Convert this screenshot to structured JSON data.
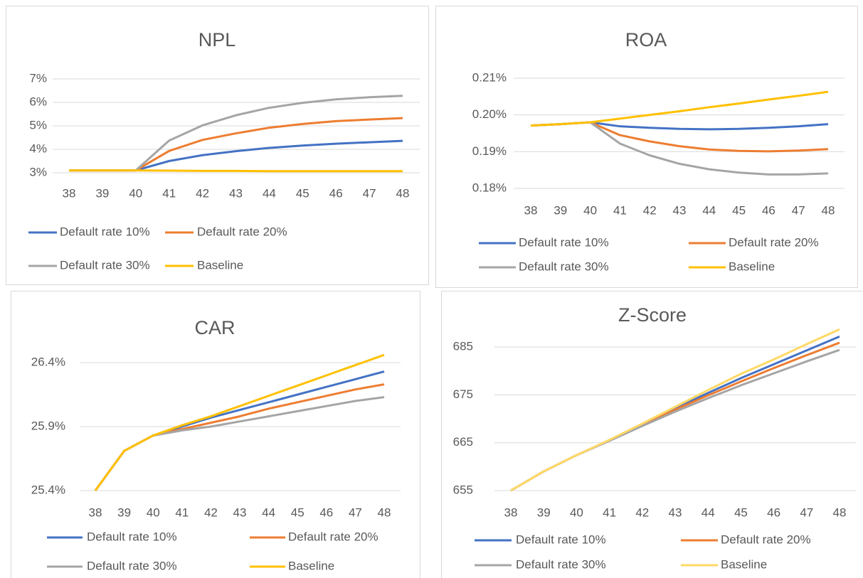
{
  "chart_data": [
    {
      "type": "line",
      "title": "NPL",
      "categories": [
        38,
        39,
        40,
        41,
        42,
        43,
        44,
        45,
        46,
        47,
        48
      ],
      "ylim": [
        3,
        7
      ],
      "yticks": [
        {
          "value": 3,
          "label": "3%"
        },
        {
          "value": 4,
          "label": "4%"
        },
        {
          "value": 5,
          "label": "5%"
        },
        {
          "value": 6,
          "label": "6%"
        },
        {
          "value": 7,
          "label": "7%"
        }
      ],
      "grid": true,
      "series": [
        {
          "name": "Default rate 10%",
          "color": "#4472c4",
          "values": [
            3.1,
            3.1,
            3.1,
            3.5,
            3.75,
            3.92,
            4.06,
            4.16,
            4.24,
            4.3,
            4.36
          ]
        },
        {
          "name": "Default rate 20%",
          "color": "#ed7d31",
          "values": [
            3.1,
            3.1,
            3.1,
            3.93,
            4.4,
            4.68,
            4.92,
            5.08,
            5.2,
            5.27,
            5.33
          ]
        },
        {
          "name": "Default rate 30%",
          "color": "#a5a5a5",
          "values": [
            3.1,
            3.1,
            3.1,
            4.37,
            5.02,
            5.45,
            5.77,
            5.98,
            6.13,
            6.22,
            6.28
          ]
        },
        {
          "name": "Baseline",
          "color": "#ffc000",
          "values": [
            3.1,
            3.1,
            3.1,
            3.09,
            3.08,
            3.08,
            3.07,
            3.07,
            3.07,
            3.07,
            3.07
          ]
        }
      ]
    },
    {
      "type": "line",
      "title": "ROA",
      "categories": [
        38,
        39,
        40,
        41,
        42,
        43,
        44,
        45,
        46,
        47,
        48
      ],
      "ylim": [
        0.18,
        0.21
      ],
      "yticks": [
        {
          "value": 0.18,
          "label": "0.18%"
        },
        {
          "value": 0.19,
          "label": "0.19%"
        },
        {
          "value": 0.2,
          "label": "0.20%"
        },
        {
          "value": 0.21,
          "label": "0.21%"
        }
      ],
      "grid": true,
      "series": [
        {
          "name": "Default rate 10%",
          "color": "#4472c4",
          "values": [
            0.1971,
            0.1975,
            0.198,
            0.1969,
            0.1965,
            0.1962,
            0.1961,
            0.1962,
            0.1965,
            0.1969,
            0.1975
          ]
        },
        {
          "name": "Default rate 20%",
          "color": "#ed7d31",
          "values": [
            0.1971,
            0.1975,
            0.198,
            0.1945,
            0.1928,
            0.1915,
            0.1906,
            0.1902,
            0.1901,
            0.1903,
            0.1907
          ]
        },
        {
          "name": "Default rate 30%",
          "color": "#a5a5a5",
          "values": [
            0.1971,
            0.1975,
            0.198,
            0.1922,
            0.189,
            0.1867,
            0.1852,
            0.1843,
            0.1838,
            0.1838,
            0.1841
          ]
        },
        {
          "name": "Baseline",
          "color": "#ffc000",
          "values": [
            0.1971,
            0.1975,
            0.198,
            0.199,
            0.2,
            0.201,
            0.2021,
            0.2031,
            0.2042,
            0.2052,
            0.2063
          ]
        }
      ]
    },
    {
      "type": "line",
      "title": "CAR",
      "categories": [
        38,
        39,
        40,
        41,
        42,
        43,
        44,
        45,
        46,
        47,
        48
      ],
      "ylim": [
        25.4,
        26.5
      ],
      "yticks": [
        {
          "value": 25.4,
          "label": "25.4%"
        },
        {
          "value": 25.9,
          "label": "25.9%"
        },
        {
          "value": 26.4,
          "label": "26.4%"
        }
      ],
      "grid": true,
      "series": [
        {
          "name": "Default rate 10%",
          "color": "#4472c4",
          "values": [
            25.4,
            25.71,
            25.83,
            25.9,
            25.97,
            26.03,
            26.09,
            26.15,
            26.21,
            26.27,
            26.33
          ]
        },
        {
          "name": "Default rate 20%",
          "color": "#ed7d31",
          "values": [
            25.4,
            25.71,
            25.83,
            25.88,
            25.93,
            25.98,
            26.04,
            26.09,
            26.14,
            26.19,
            26.23
          ]
        },
        {
          "name": "Default rate 30%",
          "color": "#a5a5a5",
          "values": [
            25.4,
            25.71,
            25.83,
            25.87,
            25.9,
            25.94,
            25.98,
            26.02,
            26.06,
            26.1,
            26.13
          ]
        },
        {
          "name": "Baseline",
          "color": "#ffc000",
          "values": [
            25.4,
            25.71,
            25.83,
            25.91,
            25.98,
            26.06,
            26.14,
            26.22,
            26.3,
            26.38,
            26.46
          ]
        }
      ]
    },
    {
      "type": "line",
      "title": "Z-Score",
      "categories": [
        38,
        39,
        40,
        41,
        42,
        43,
        44,
        45,
        46,
        47,
        48
      ],
      "ylim": [
        655,
        690
      ],
      "yticks": [
        655,
        665,
        675,
        685
      ],
      "grid": true,
      "series": [
        {
          "name": "Default rate 10%",
          "color": "#4472c4",
          "values": [
            655,
            659,
            662.4,
            665.5,
            668.8,
            672.2,
            675.4,
            678.5,
            681.4,
            684.3,
            687.2
          ]
        },
        {
          "name": "Default rate 20%",
          "color": "#ed7d31",
          "values": [
            655,
            659,
            662.4,
            665.5,
            668.7,
            671.9,
            674.9,
            677.8,
            680.6,
            683.3,
            685.9
          ]
        },
        {
          "name": "Default rate 30%",
          "color": "#a5a5a5",
          "values": [
            655,
            659,
            662.4,
            665.4,
            668.5,
            671.5,
            674.3,
            677,
            679.5,
            682,
            684.4
          ]
        },
        {
          "name": "Baseline",
          "color": "#ffd966",
          "values": [
            655,
            659,
            662.4,
            665.6,
            669,
            672.5,
            676,
            679.4,
            682.4,
            685.6,
            688.7
          ]
        }
      ]
    }
  ]
}
